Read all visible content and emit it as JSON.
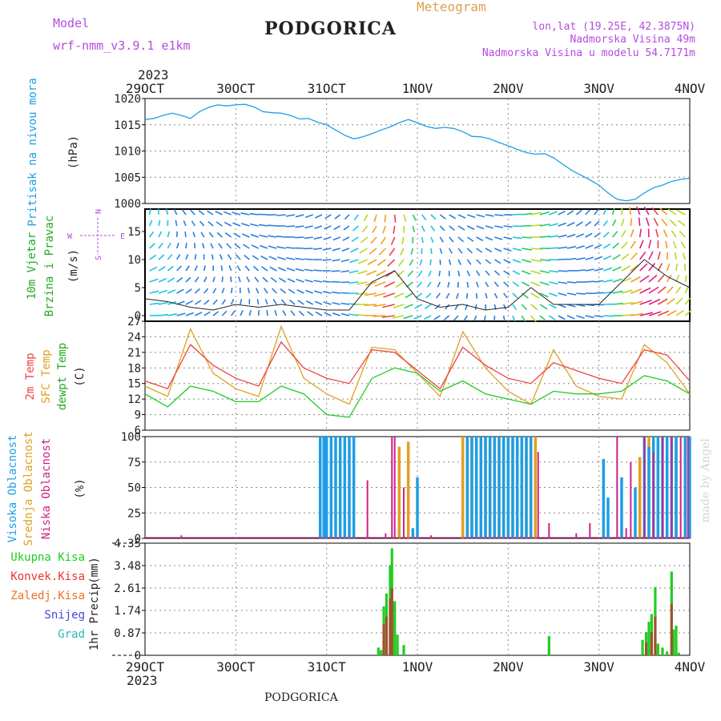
{
  "header": {
    "model_label": "Model",
    "model_name": "wrf-nmm_v3.9.1 e1km",
    "city": "PODGORICA",
    "product": "Meteogram",
    "coords": "lon,lat (19.25E, 42.3875N)",
    "elevation": "Nadmorska Visina 49m",
    "model_elevation": "Nadmorska Visina u modelu 54.7171m",
    "year": "2023",
    "footer_city": "PODGORICA",
    "watermark": "made by Angel"
  },
  "colors": {
    "pressure": "#1e9ee6",
    "wind_label": "#22bb22",
    "wind_label2": "#22aa22",
    "purple": "#b44ce0",
    "temp2m": "#ee4444",
    "sfc": "#e0a020",
    "dew": "#22cc22",
    "cloud_high": "#1e9ee6",
    "cloud_mid": "#e0a020",
    "cloud_low": "#cc2288",
    "precip_total": "#22cc22",
    "precip_conv": "#ee3333",
    "precip_strat": "#f07020",
    "snow": "#4444dd",
    "grad": "#22bbbb",
    "title": "#222222",
    "meteogram": "#e0a050"
  },
  "x_axis": {
    "ticks": [
      "29OCT",
      "30OCT",
      "31OCT",
      "1NOV",
      "2NOV",
      "3NOV",
      "4NOV"
    ]
  },
  "panels": {
    "pressure": {
      "label": "Pritisak na nivou mora",
      "unit": "(hPa)",
      "ticks": [
        "1020",
        "1015",
        "1010",
        "1005",
        "1000"
      ]
    },
    "wind": {
      "label1": "10m Vjetar",
      "label2": "Brzina i Pravac",
      "unit": "(m/s)",
      "ticks": [
        "15",
        "10",
        "5",
        "0"
      ],
      "compass_n": "N",
      "compass_w": "W",
      "compass_e": "E",
      "compass_s": "S"
    },
    "temp": {
      "label1": "2m Temp",
      "label2": "SFC Temp",
      "label3": "dewpt Temp",
      "unit": "(C)",
      "ticks": [
        "27",
        "24",
        "21",
        "18",
        "15",
        "12",
        "9",
        "6"
      ]
    },
    "cloud": {
      "label1": "Visoka Oblacnost",
      "label2": "Srednja Oblacnost",
      "label3": "Niska Oblacnost",
      "unit": "(%)",
      "ticks": [
        "100",
        "75",
        "50",
        "25",
        "0"
      ]
    },
    "precip": {
      "label": "1hr Precip",
      "unit": "(mm)",
      "ticks": [
        "4.35",
        "3.48",
        "2.61",
        "1.74",
        "0.87",
        "0"
      ],
      "legend": [
        "Ukupna Kisa",
        "Konvek.Kisa",
        "Zaledj.Kisa",
        "Snijeg",
        "Grad"
      ]
    }
  },
  "chart_data": [
    {
      "type": "line",
      "title": "Pritisak na nivou mora",
      "ylabel": "(hPa)",
      "ylim": [
        1000,
        1020
      ],
      "x_unit": "days since 29OCT 00UTC",
      "series": [
        {
          "name": "Pritisak na nivou mora",
          "x": [
            0,
            0.1,
            0.2,
            0.3,
            0.4,
            0.5,
            0.6,
            0.7,
            0.8,
            0.9,
            1.0,
            1.1,
            1.2,
            1.3,
            1.4,
            1.5,
            1.6,
            1.7,
            1.8,
            1.9,
            2.0,
            2.1,
            2.2,
            2.3,
            2.4,
            2.5,
            2.6,
            2.7,
            2.8,
            2.9,
            3.0,
            3.1,
            3.2,
            3.3,
            3.4,
            3.5,
            3.6,
            3.7,
            3.8,
            3.9,
            4.0,
            4.1,
            4.2,
            4.3,
            4.4,
            4.5,
            4.6,
            4.7,
            4.8,
            4.9,
            5.0,
            5.1,
            5.2,
            5.3,
            5.4,
            5.5,
            5.6,
            5.7,
            5.8,
            5.9,
            6.0
          ],
          "values": [
            1016,
            1016.2,
            1016.8,
            1017.2,
            1016.8,
            1016.2,
            1017.5,
            1018.3,
            1018.8,
            1018.6,
            1018.8,
            1018.9,
            1018.4,
            1017.5,
            1017.3,
            1017.2,
            1016.8,
            1016.1,
            1016.2,
            1015.5,
            1015,
            1014,
            1013,
            1012.3,
            1012.7,
            1013.3,
            1014.0,
            1014.6,
            1015.4,
            1016.0,
            1015.4,
            1014.7,
            1014.3,
            1014.5,
            1014.3,
            1013.7,
            1012.8,
            1012.7,
            1012.3,
            1011.6,
            1011.0,
            1010.3,
            1009.7,
            1009.4,
            1009.5,
            1008.7,
            1007.5,
            1006.3,
            1005.4,
            1004.5,
            1003.5,
            1002.0,
            1000.8,
            1000.5,
            1000.8,
            1002.0,
            1003.0,
            1003.5,
            1004.2,
            1004.6,
            1004.8
          ]
        }
      ]
    },
    {
      "type": "line",
      "title": "10m Vjetar",
      "ylabel": "(m/s)",
      "ylim": [
        -1,
        19
      ],
      "series": [
        {
          "name": "Brzina",
          "x": [
            0,
            0.25,
            0.5,
            0.75,
            1.0,
            1.25,
            1.5,
            1.75,
            2.0,
            2.25,
            2.5,
            2.75,
            3.0,
            3.25,
            3.5,
            3.75,
            4.0,
            4.25,
            4.5,
            4.75,
            5.0,
            5.25,
            5.5,
            5.75,
            6.0
          ],
          "values": [
            3,
            2.5,
            1.5,
            1,
            2,
            1.5,
            2,
            1.5,
            1,
            1,
            6,
            8,
            3,
            1.5,
            2,
            1,
            1.5,
            5,
            2,
            2,
            2,
            6,
            10,
            7,
            5
          ]
        }
      ]
    },
    {
      "type": "line",
      "title": "Temp",
      "ylabel": "(C)",
      "ylim": [
        6,
        27
      ],
      "x": [
        0,
        0.25,
        0.5,
        0.75,
        1.0,
        1.25,
        1.5,
        1.75,
        2.0,
        2.25,
        2.5,
        2.75,
        3.0,
        3.25,
        3.5,
        3.75,
        4.0,
        4.25,
        4.5,
        4.75,
        5.0,
        5.25,
        5.5,
        5.75,
        6.0
      ],
      "series": [
        {
          "name": "2m Temp",
          "values": [
            15.5,
            14,
            22.5,
            18.5,
            16,
            14.5,
            23,
            18,
            16,
            15,
            21.5,
            21,
            17.5,
            14,
            22,
            18.5,
            16,
            15,
            19,
            17.5,
            16,
            15,
            21.5,
            20.5,
            15.5
          ]
        },
        {
          "name": "SFC Temp",
          "values": [
            14.5,
            12.5,
            25.5,
            17,
            14,
            12.5,
            26,
            16,
            13,
            11,
            22,
            21.5,
            17,
            12.5,
            25,
            18,
            13.5,
            11,
            21.5,
            14.5,
            12.5,
            12,
            22.5,
            19,
            13
          ]
        },
        {
          "name": "dewpt Temp",
          "values": [
            13,
            10.5,
            14.5,
            13.5,
            11.5,
            11.5,
            14.5,
            13,
            9,
            8.5,
            16,
            18,
            17,
            13.5,
            15.5,
            13,
            12,
            11,
            13.5,
            13,
            13,
            13.5,
            16.5,
            15.5,
            13
          ]
        }
      ]
    },
    {
      "type": "bar",
      "title": "Oblacnost",
      "ylabel": "(%)",
      "ylim": [
        0,
        100
      ],
      "series": [
        {
          "name": "Visoka Oblacnost",
          "x": [
            1.93,
            1.97,
            2.0,
            2.05,
            2.1,
            2.15,
            2.2,
            2.25,
            2.3,
            2.95,
            3.0,
            3.55,
            3.6,
            3.65,
            3.7,
            3.75,
            3.8,
            3.85,
            3.9,
            3.95,
            4.0,
            4.05,
            4.1,
            4.15,
            4.2,
            4.25,
            5.05,
            5.1,
            5.25,
            5.4,
            5.5,
            5.55,
            5.6,
            5.65,
            5.7,
            5.75,
            5.8,
            5.85,
            5.95,
            6.0
          ],
          "values": [
            100,
            100,
            100,
            100,
            100,
            100,
            100,
            100,
            100,
            10,
            60,
            100,
            100,
            100,
            100,
            100,
            100,
            100,
            100,
            100,
            100,
            100,
            100,
            100,
            100,
            100,
            78,
            40,
            60,
            50,
            100,
            90,
            100,
            100,
            100,
            100,
            100,
            100,
            100,
            100
          ]
        },
        {
          "name": "Srednja Oblacnost",
          "x": [
            2.8,
            2.9,
            3.5,
            3.55,
            3.6,
            3.65,
            3.7,
            3.75,
            3.8,
            3.85,
            3.9,
            3.95,
            4.0,
            4.05,
            4.1,
            4.15,
            4.2,
            4.25,
            4.3,
            5.45,
            5.55,
            5.65,
            5.75,
            5.85,
            5.95
          ],
          "values": [
            90,
            95,
            100,
            100,
            100,
            100,
            100,
            100,
            100,
            100,
            100,
            100,
            100,
            100,
            100,
            100,
            100,
            100,
            100,
            80,
            100,
            100,
            100,
            100,
            100
          ]
        },
        {
          "name": "Niska Oblacnost",
          "x": [
            0.4,
            2.45,
            2.65,
            2.72,
            2.75,
            2.85,
            3.15,
            4.33,
            4.45,
            4.75,
            4.9,
            5.2,
            5.3,
            5.35,
            5.5,
            5.6,
            5.7,
            5.8,
            5.9,
            5.98
          ],
          "values": [
            3,
            57,
            5,
            100,
            100,
            50,
            3,
            85,
            15,
            5,
            15,
            100,
            10,
            75,
            100,
            85,
            100,
            100,
            100,
            100
          ]
        }
      ]
    },
    {
      "type": "bar",
      "title": "1hr Precip",
      "ylabel": "(mm)",
      "ylim": [
        0,
        4.35
      ],
      "series": [
        {
          "name": "Ukupna Kisa",
          "x": [
            2.57,
            2.6,
            2.63,
            2.66,
            2.7,
            2.72,
            2.75,
            2.78,
            2.85,
            4.45,
            5.48,
            5.52,
            5.55,
            5.58,
            5.62,
            5.65,
            5.7,
            5.75,
            5.8,
            5.82,
            5.85,
            5.88
          ],
          "values": [
            0.3,
            0.2,
            1.9,
            2.4,
            3.5,
            4.15,
            2.1,
            0.8,
            0.4,
            0.75,
            0.6,
            0.9,
            1.3,
            1.6,
            2.65,
            0.45,
            0.3,
            0.15,
            3.25,
            1.0,
            1.15,
            0.1
          ]
        },
        {
          "name": "Konvek.Kisa",
          "x": [
            2.63,
            2.66,
            2.7,
            2.72,
            5.52,
            5.58,
            5.62,
            5.8
          ],
          "values": [
            1.2,
            1.5,
            2.2,
            2.6,
            0.5,
            0.9,
            1.5,
            2.0
          ]
        }
      ]
    }
  ]
}
